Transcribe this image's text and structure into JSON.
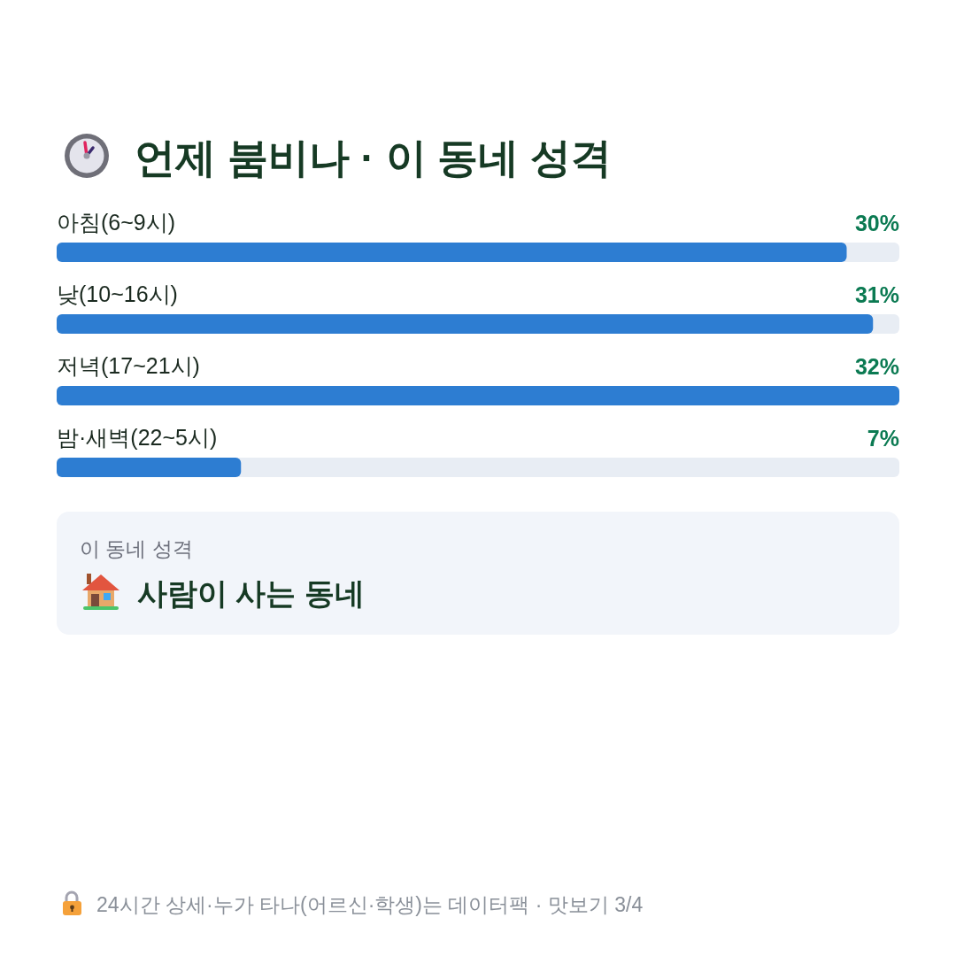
{
  "chart_data": [
    {
      "type": "bar",
      "orientation": "horizontal",
      "title": "언제 붐비나 · 이 동네 성격",
      "categories": [
        "아침(6~9시)",
        "낮(10~16시)",
        "저녁(17~21시)",
        "밤·새벽(22~5시)"
      ],
      "values": [
        30,
        31,
        32,
        7
      ],
      "color": "#2d7dd2",
      "value_labels": [
        "30%",
        "31%",
        "32%",
        "7%"
      ],
      "annotations": [
        "24시간 상세·누가 타나(어르신·학생)는 데이터팩 · 맛보기 3/4"
      ]
    },
    {
      "type": "other",
      "title": "이 동네 성격",
      "annotations": [
        "사람이 사는 동네"
      ]
    }
  ]
}
